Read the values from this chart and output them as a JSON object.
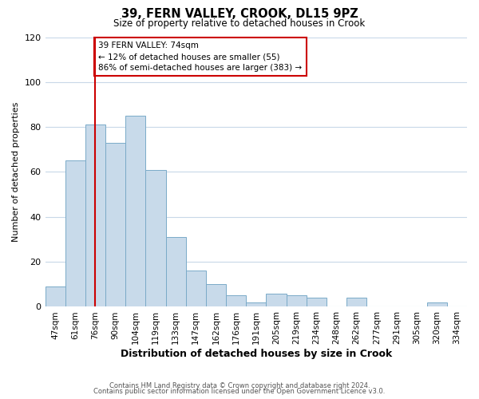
{
  "title": "39, FERN VALLEY, CROOK, DL15 9PZ",
  "subtitle": "Size of property relative to detached houses in Crook",
  "xlabel": "Distribution of detached houses by size in Crook",
  "ylabel": "Number of detached properties",
  "bar_color": "#c8daea",
  "bar_edge_color": "#7aaac8",
  "categories": [
    "47sqm",
    "61sqm",
    "76sqm",
    "90sqm",
    "104sqm",
    "119sqm",
    "133sqm",
    "147sqm",
    "162sqm",
    "176sqm",
    "191sqm",
    "205sqm",
    "219sqm",
    "234sqm",
    "248sqm",
    "262sqm",
    "277sqm",
    "291sqm",
    "305sqm",
    "320sqm",
    "334sqm"
  ],
  "values": [
    9,
    65,
    81,
    73,
    85,
    61,
    31,
    16,
    10,
    5,
    2,
    6,
    5,
    4,
    0,
    4,
    0,
    0,
    0,
    2,
    0
  ],
  "ylim": [
    0,
    120
  ],
  "yticks": [
    0,
    20,
    40,
    60,
    80,
    100,
    120
  ],
  "property_line_x": 2,
  "property_line_color": "#cc0000",
  "annotation_text": "39 FERN VALLEY: 74sqm\n← 12% of detached houses are smaller (55)\n86% of semi-detached houses are larger (383) →",
  "annotation_box_color": "#ffffff",
  "annotation_box_edge_color": "#cc0000",
  "footer_line1": "Contains HM Land Registry data © Crown copyright and database right 2024.",
  "footer_line2": "Contains public sector information licensed under the Open Government Licence v3.0.",
  "background_color": "#ffffff",
  "grid_color": "#c8d8e8"
}
